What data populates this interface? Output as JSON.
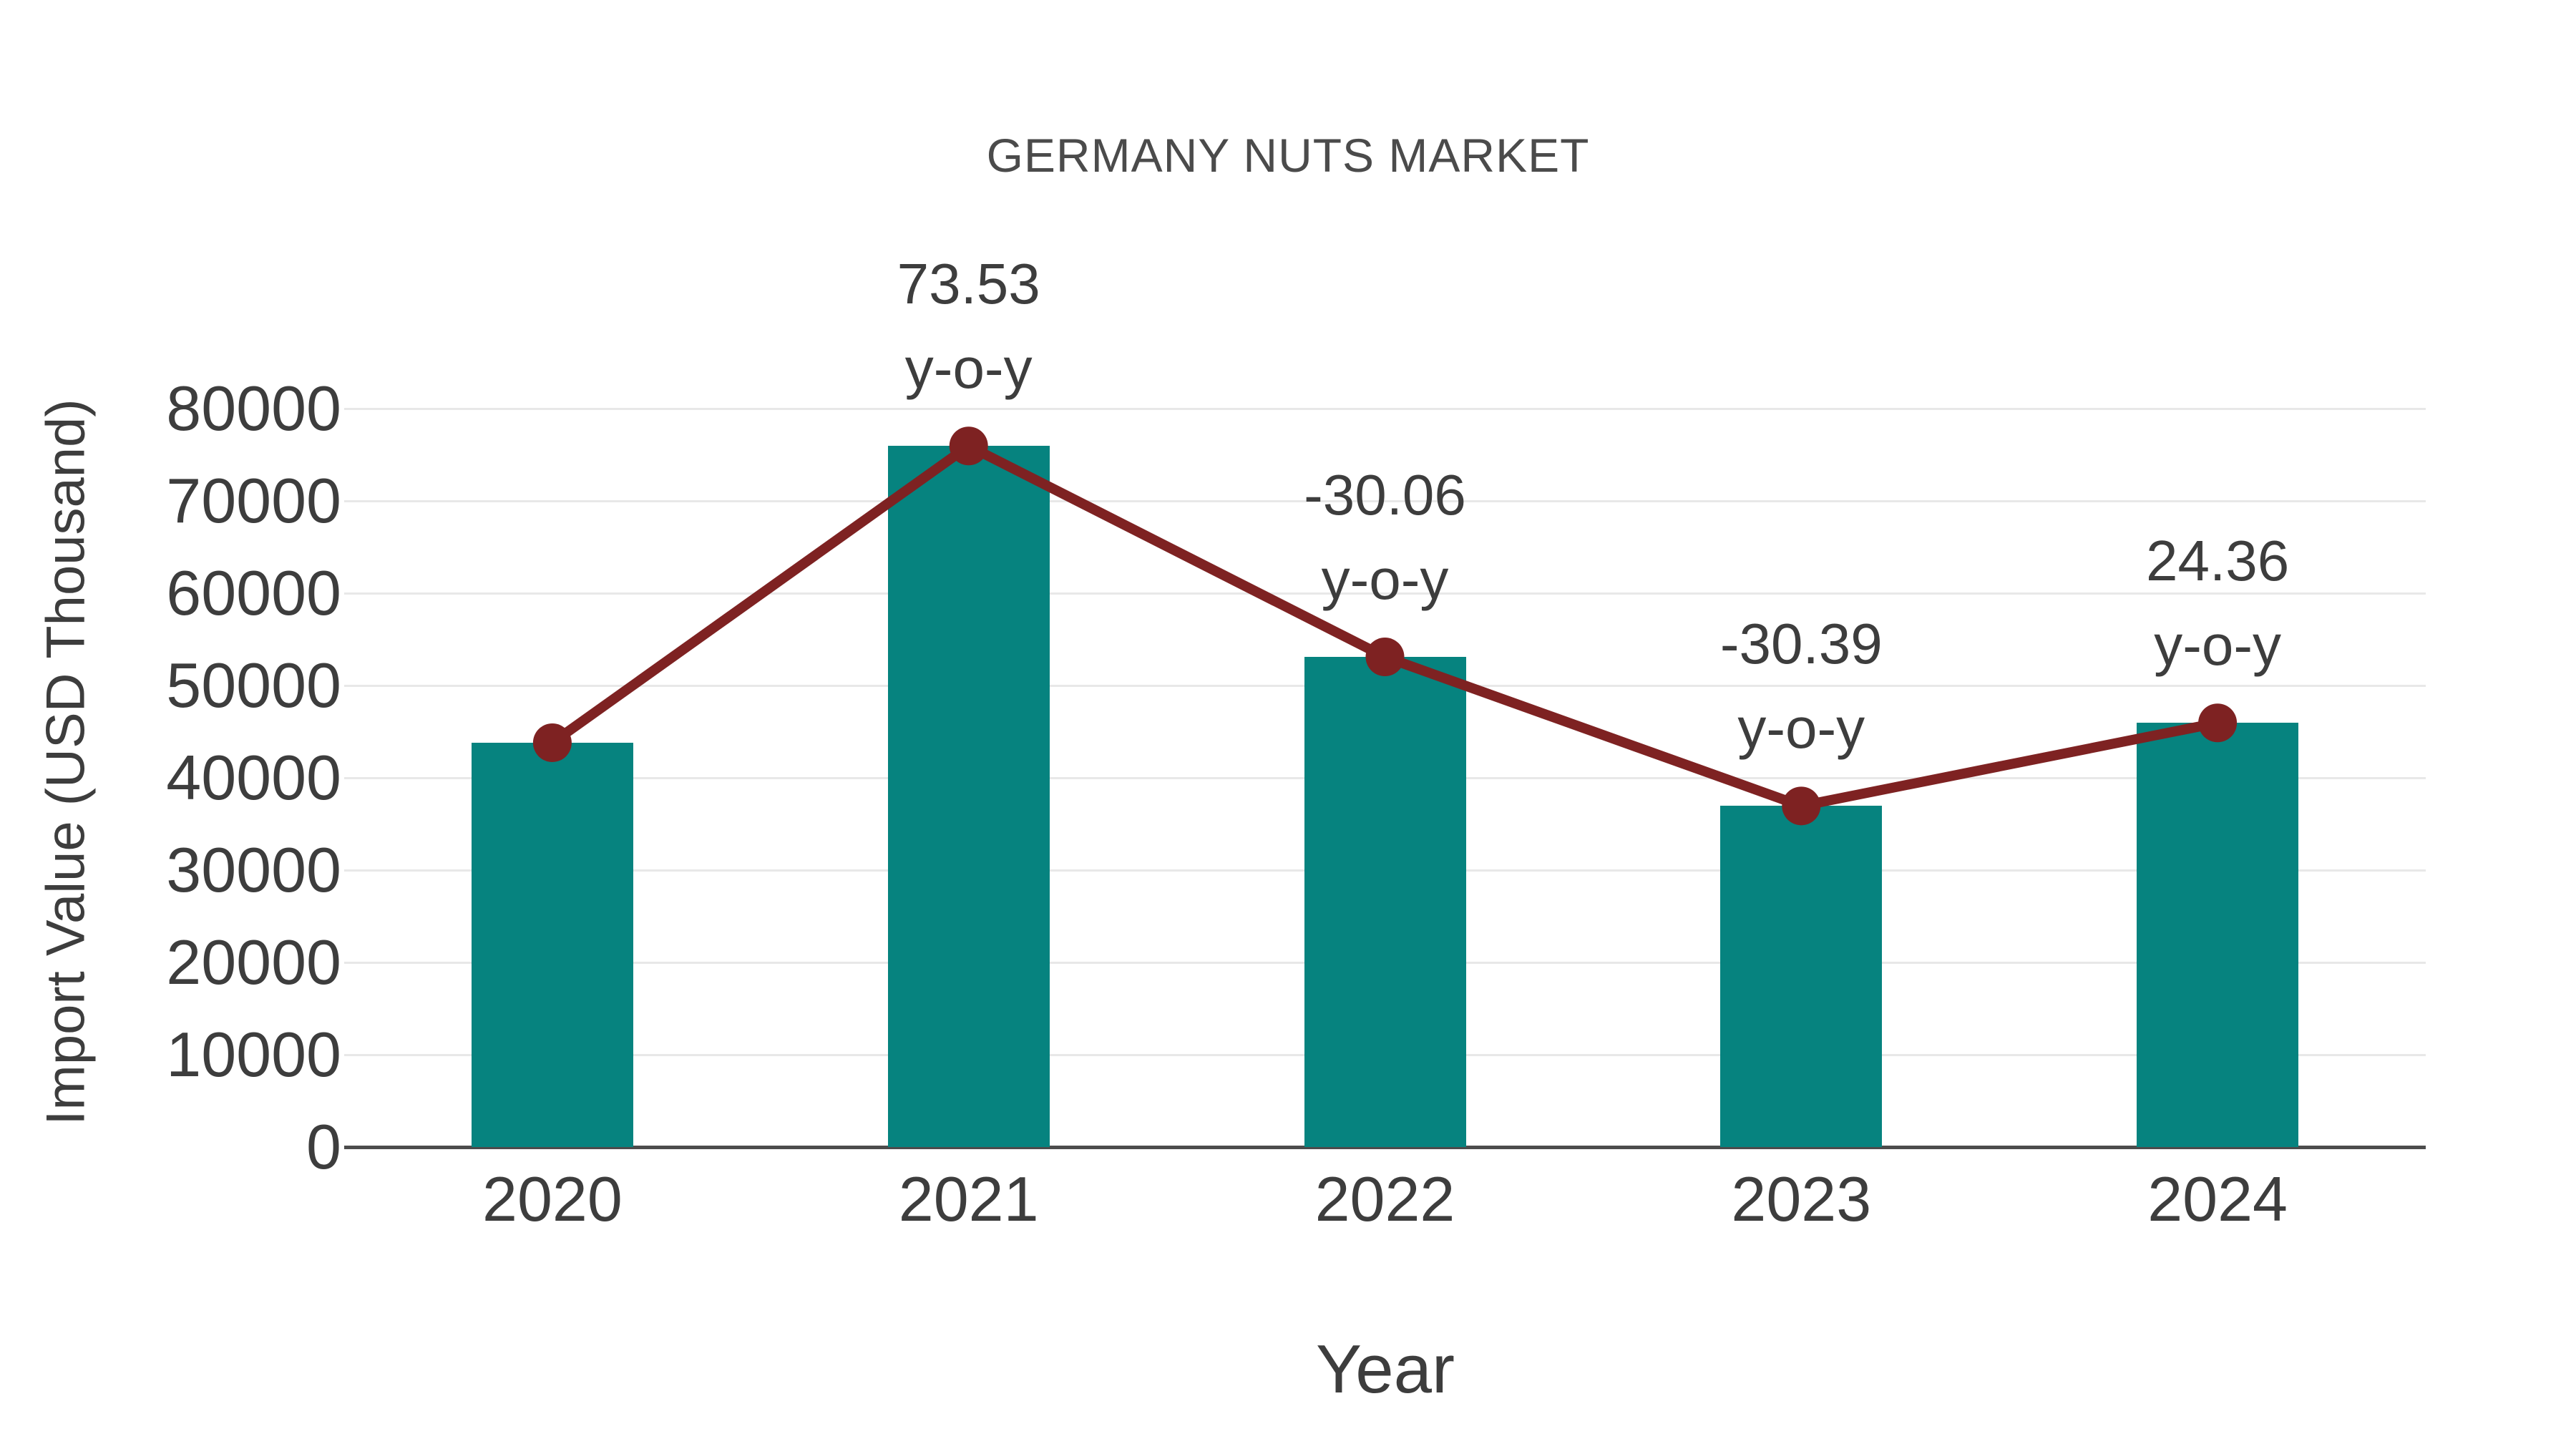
{
  "chart_data": {
    "type": "bar",
    "title": "GERMANY NUTS MARKET",
    "xlabel": "Year",
    "ylabel": "Import Value (USD Thousand)",
    "categories": [
      "2020",
      "2021",
      "2022",
      "2023",
      "2024"
    ],
    "series": [
      {
        "name": "Import Value (USD Thousand)",
        "type": "bar",
        "color": "#06837F",
        "values": [
          43800,
          75950,
          53100,
          36950,
          45950
        ]
      },
      {
        "name": "y-o-y change",
        "type": "line",
        "color": "#7E2222",
        "values_follow_bars": true,
        "point_labels": [
          null,
          "73.53",
          "-30.06",
          "-30.39",
          "24.36"
        ],
        "point_label_suffix": "y-o-y"
      }
    ],
    "ylim": [
      0,
      80000
    ],
    "yticks": [
      0,
      10000,
      20000,
      30000,
      40000,
      50000,
      60000,
      70000,
      80000
    ],
    "grid": true,
    "legend_position": "none",
    "background_color": "#FFFFFF",
    "text_color": "#3D3D3D",
    "title_color": "#4B4B4B",
    "grid_color": "#E8E8E8",
    "axis_color": "#4C4C4C"
  }
}
